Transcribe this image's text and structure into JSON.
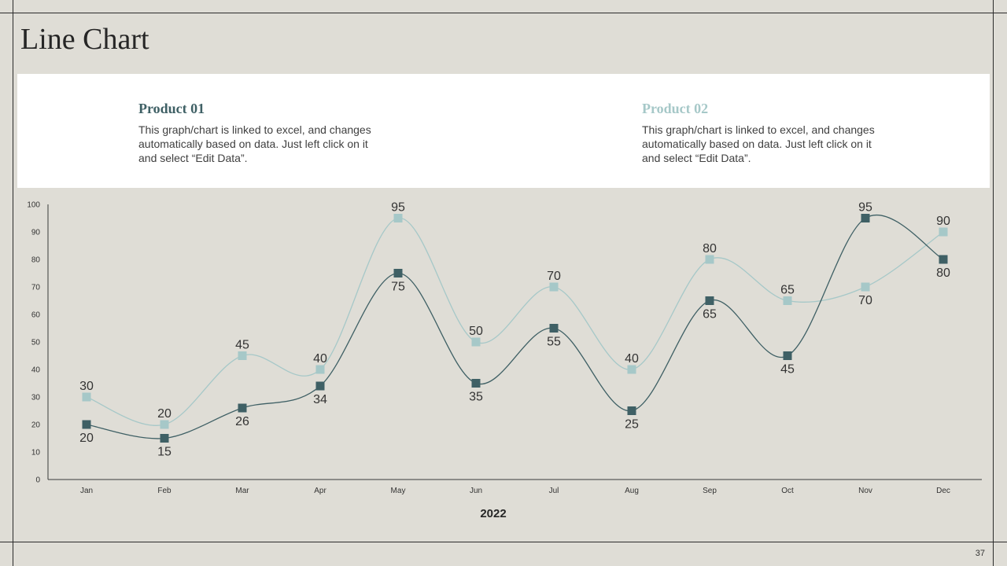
{
  "slide": {
    "title": "Line Chart",
    "page_number": "37"
  },
  "legend_panel": {
    "product1": {
      "title": "Product 01",
      "description": "This graph/chart is linked to excel, and changes automatically based on data. Just left click on it and select “Edit Data”."
    },
    "product2": {
      "title": "Product 02",
      "description": "This graph/chart is linked to excel, and changes automatically based on data. Just left click on it and select “Edit Data”."
    }
  },
  "colors": {
    "product1": "#3f6065",
    "product2": "#a6c8c8",
    "background": "#dfddd6"
  },
  "chart_data": {
    "type": "line",
    "title": "",
    "xlabel": "2022",
    "ylabel": "",
    "categories": [
      "Jan",
      "Feb",
      "Mar",
      "Apr",
      "May",
      "Jun",
      "Jul",
      "Aug",
      "Sep",
      "Oct",
      "Nov",
      "Dec"
    ],
    "ylim": [
      0,
      100
    ],
    "yticks": [
      0,
      10,
      20,
      30,
      40,
      50,
      60,
      70,
      80,
      90,
      100
    ],
    "grid": false,
    "smooth": true,
    "series": [
      {
        "name": "Product 01",
        "color": "#3f6065",
        "values": [
          20,
          15,
          26,
          34,
          75,
          35,
          55,
          25,
          65,
          45,
          95,
          80
        ]
      },
      {
        "name": "Product 02",
        "color": "#a6c8c8",
        "values": [
          30,
          20,
          45,
          40,
          95,
          50,
          70,
          40,
          80,
          65,
          70,
          90
        ]
      }
    ]
  }
}
